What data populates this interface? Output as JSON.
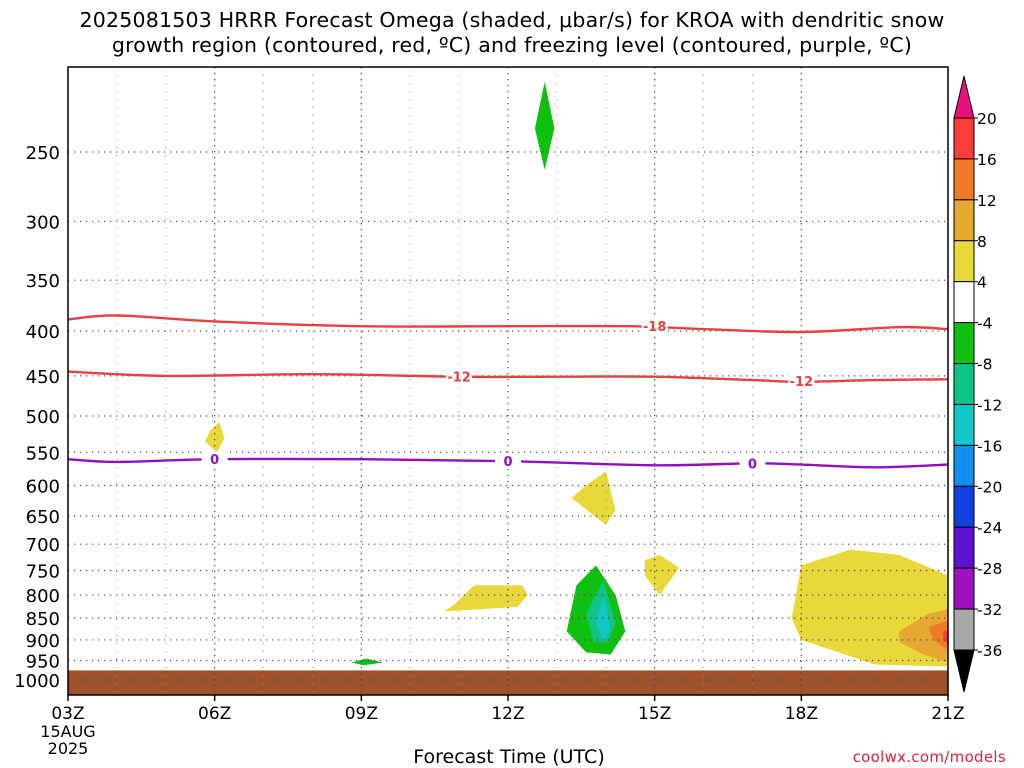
{
  "title": {
    "line1": "2025081503 HRRR Forecast Omega (shaded, μbar/s) for KROA with dendritic snow",
    "line2": "growth region (contoured, red, ºC) and freezing level (contoured, purple, ºC)"
  },
  "credit": "coolwx.com/models",
  "chart_data": {
    "type": "heatmap",
    "xlabel": "Forecast Time (UTC)",
    "ylabel": "",
    "x_ticks": [
      {
        "hour": 0,
        "label": "03Z"
      },
      {
        "hour": 3,
        "label": "06Z"
      },
      {
        "hour": 6,
        "label": "09Z"
      },
      {
        "hour": 9,
        "label": "12Z"
      },
      {
        "hour": 12,
        "label": "15Z"
      },
      {
        "hour": 15,
        "label": "18Z"
      },
      {
        "hour": 18,
        "label": "21Z"
      }
    ],
    "x_start_label": [
      "15AUG",
      "2025"
    ],
    "xlim_hours": [
      0,
      18
    ],
    "y_ticks": [
      250,
      300,
      350,
      400,
      450,
      500,
      550,
      600,
      650,
      700,
      750,
      800,
      850,
      900,
      950,
      1000
    ],
    "ylim_hpa": [
      200,
      1040
    ],
    "y_log": true,
    "grid": true,
    "colorbar": {
      "labels": [
        "20",
        "16",
        "12",
        "8",
        "4",
        "-4",
        "-8",
        "-12",
        "-16",
        "-20",
        "-24",
        "-28",
        "-32",
        "-36"
      ],
      "colors": [
        "#e8117a",
        "#ff3b3b",
        "#f07a28",
        "#e6a830",
        "#e8d83a",
        "#ffffff",
        "#10c010",
        "#10c488",
        "#10c8c8",
        "#1090f0",
        "#1040e0",
        "#6010d0",
        "#a010c0",
        "#a8a8a8",
        "#000000"
      ]
    },
    "contours": [
      {
        "name": "-18",
        "color": "#e84040",
        "points": [
          [
            0,
            388
          ],
          [
            1,
            384
          ],
          [
            3,
            390
          ],
          [
            6,
            395
          ],
          [
            9,
            395
          ],
          [
            11.5,
            395
          ],
          [
            13,
            398
          ],
          [
            15,
            401
          ],
          [
            17,
            396
          ],
          [
            18,
            398
          ]
        ],
        "labels": [
          [
            12,
            395
          ]
        ]
      },
      {
        "name": "-12",
        "color": "#e84040",
        "points": [
          [
            0,
            445
          ],
          [
            2,
            450
          ],
          [
            5,
            448
          ],
          [
            8,
            451
          ],
          [
            10,
            451
          ],
          [
            12,
            451
          ],
          [
            14,
            455
          ],
          [
            15,
            457
          ],
          [
            16.5,
            455
          ],
          [
            18,
            454
          ]
        ],
        "labels": [
          [
            8,
            451
          ],
          [
            15,
            456
          ]
        ]
      },
      {
        "name": "0",
        "color": "#9010c0",
        "points": [
          [
            0,
            560
          ],
          [
            1,
            564
          ],
          [
            3,
            560
          ],
          [
            6,
            560
          ],
          [
            9,
            563
          ],
          [
            12,
            569
          ],
          [
            14,
            566
          ],
          [
            15,
            568
          ],
          [
            16.5,
            572
          ],
          [
            18,
            568
          ]
        ],
        "labels": [
          [
            3,
            560
          ],
          [
            9,
            563
          ],
          [
            14,
            566
          ]
        ]
      }
    ],
    "shaded_regions": [
      {
        "value": -8,
        "color": "#10c010",
        "polygon": [
          [
            9.75,
            262
          ],
          [
            9.55,
            235
          ],
          [
            9.75,
            208
          ],
          [
            9.95,
            235
          ]
        ]
      },
      {
        "value": 4,
        "color": "#e8d83a",
        "polygon": [
          [
            2.9,
            520
          ],
          [
            3.1,
            508
          ],
          [
            3.2,
            530
          ],
          [
            3.05,
            550
          ],
          [
            2.8,
            535
          ]
        ]
      },
      {
        "value": 4,
        "color": "#e8d83a",
        "polygon": [
          [
            10.6,
            600
          ],
          [
            11.0,
            578
          ],
          [
            11.2,
            640
          ],
          [
            11.0,
            665
          ],
          [
            10.3,
            620
          ]
        ]
      },
      {
        "value": 4,
        "color": "#e8d83a",
        "polygon": [
          [
            7.9,
            820
          ],
          [
            8.3,
            780
          ],
          [
            9.3,
            780
          ],
          [
            9.4,
            800
          ],
          [
            9.2,
            825
          ],
          [
            7.7,
            835
          ]
        ]
      },
      {
        "value": 4,
        "color": "#e8d83a",
        "polygon": [
          [
            11.8,
            730
          ],
          [
            12.1,
            720
          ],
          [
            12.5,
            745
          ],
          [
            12.1,
            800
          ],
          [
            11.8,
            760
          ]
        ]
      },
      {
        "value": 4,
        "color": "#e8d83a",
        "polygon": [
          [
            15.0,
            740
          ],
          [
            16.0,
            710
          ],
          [
            17.0,
            720
          ],
          [
            18.0,
            760
          ],
          [
            18.0,
            965
          ],
          [
            16.5,
            960
          ],
          [
            15.0,
            900
          ],
          [
            14.8,
            850
          ]
        ]
      },
      {
        "value": 8,
        "color": "#e6a830",
        "polygon": [
          [
            17.0,
            880
          ],
          [
            17.6,
            840
          ],
          [
            18.0,
            830
          ],
          [
            18.0,
            955
          ],
          [
            17.5,
            935
          ],
          [
            17.0,
            905
          ]
        ]
      },
      {
        "value": 12,
        "color": "#f07a28",
        "polygon": [
          [
            17.6,
            870
          ],
          [
            18.0,
            855
          ],
          [
            18.0,
            925
          ],
          [
            17.7,
            900
          ]
        ]
      },
      {
        "value": 16,
        "color": "#ff3b3b",
        "polygon": [
          [
            17.9,
            880
          ],
          [
            18.0,
            875
          ],
          [
            18.0,
            910
          ],
          [
            17.9,
            900
          ]
        ]
      },
      {
        "value": -4,
        "color": "#10c010",
        "polygon": [
          [
            10.4,
            780
          ],
          [
            10.8,
            740
          ],
          [
            11.2,
            800
          ],
          [
            11.4,
            880
          ],
          [
            11.1,
            935
          ],
          [
            10.6,
            930
          ],
          [
            10.2,
            880
          ]
        ]
      },
      {
        "value": -8,
        "color": "#10c488",
        "polygon": [
          [
            10.6,
            840
          ],
          [
            10.95,
            770
          ],
          [
            11.2,
            860
          ],
          [
            11.05,
            905
          ],
          [
            10.75,
            905
          ]
        ]
      },
      {
        "value": -12,
        "color": "#10c8c8",
        "polygon": [
          [
            10.8,
            860
          ],
          [
            10.95,
            800
          ],
          [
            11.1,
            875
          ],
          [
            10.95,
            905
          ]
        ]
      },
      {
        "value": -4,
        "color": "#10c010",
        "polygon": [
          [
            5.8,
            955
          ],
          [
            6.1,
            945
          ],
          [
            6.45,
            955
          ],
          [
            6.05,
            962
          ]
        ]
      }
    ],
    "terrain": {
      "color": "#a0522d",
      "top_hpa": 975
    }
  }
}
